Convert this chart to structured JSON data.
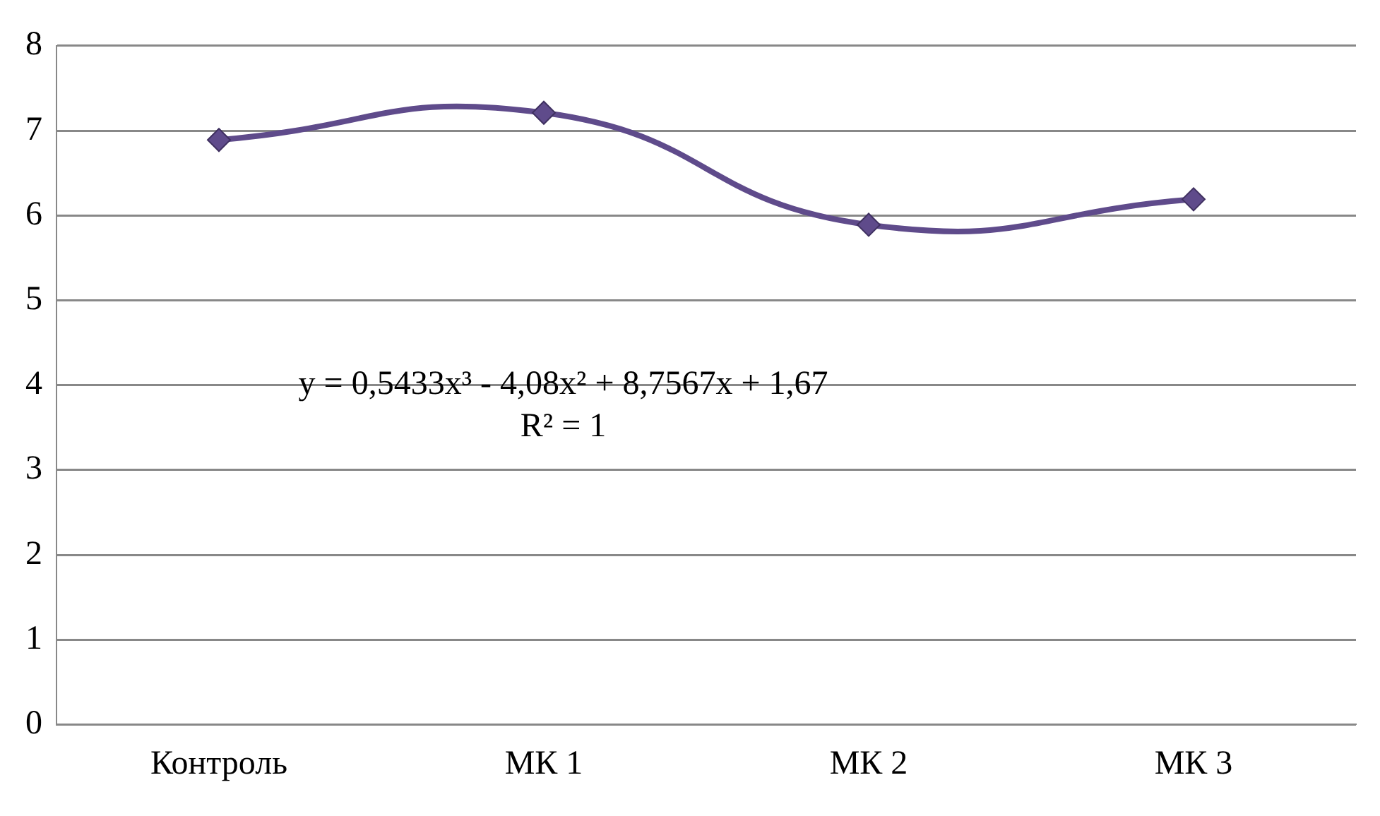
{
  "chart_data": {
    "type": "line",
    "categories": [
      "Контроль",
      "МК 1",
      "МК 2",
      "МК 3"
    ],
    "ylim": [
      0,
      8
    ],
    "yticks": [
      0,
      1,
      2,
      3,
      4,
      5,
      6,
      7,
      8
    ],
    "grid": "y",
    "marker": "diamond",
    "line_style": "solid",
    "series": [
      {
        "color": "#5f4b8b",
        "values": [
          6.89,
          7.21,
          5.89,
          6.19
        ]
      }
    ],
    "annotations": [
      "y = 0,5433x³ - 4,08x² + 8,7567x + 1,67",
      "R² = 1"
    ]
  }
}
